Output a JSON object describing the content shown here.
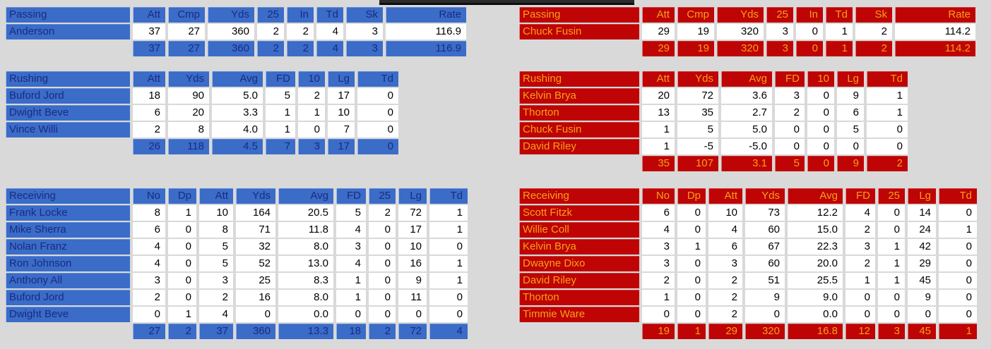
{
  "page": {
    "background": "#d9d9d9",
    "clipped_banner_color": "#2b2b2b"
  },
  "teams": [
    {
      "id": "team-left",
      "side": "left",
      "colors": {
        "cell": "#3a6cc8",
        "label_text": "#1a2b80",
        "value_text": "#000000",
        "value_bg": "#ffffff"
      },
      "sections": [
        {
          "key": "passing",
          "label": "Passing",
          "columns": [
            "Att",
            "Cmp",
            "Yds",
            "25",
            "In",
            "Td",
            "Sk",
            "Rate"
          ],
          "rows": [
            {
              "name": "Anderson",
              "values": [
                "37",
                "27",
                "360",
                "2",
                "2",
                "4",
                "3",
                "116.9"
              ]
            }
          ],
          "totals": [
            "37",
            "27",
            "360",
            "2",
            "2",
            "4",
            "3",
            "116.9"
          ]
        },
        {
          "key": "rushing",
          "label": "Rushing",
          "columns": [
            "Att",
            "Yds",
            "Avg",
            "FD",
            "10",
            "Lg",
            "Td"
          ],
          "rows": [
            {
              "name": "Buford Jord",
              "values": [
                "18",
                "90",
                "5.0",
                "5",
                "2",
                "17",
                "0"
              ]
            },
            {
              "name": "Dwight Beve",
              "values": [
                "6",
                "20",
                "3.3",
                "1",
                "1",
                "10",
                "0"
              ]
            },
            {
              "name": "Vince Willi",
              "values": [
                "2",
                "8",
                "4.0",
                "1",
                "0",
                "7",
                "0"
              ]
            }
          ],
          "totals": [
            "26",
            "118",
            "4.5",
            "7",
            "3",
            "17",
            "0"
          ]
        },
        {
          "key": "receiving",
          "label": "Receiving",
          "columns": [
            "No",
            "Dp",
            "Att",
            "Yds",
            "Avg",
            "FD",
            "25",
            "Lg",
            "Td"
          ],
          "rows": [
            {
              "name": "Frank Locke",
              "values": [
                "8",
                "1",
                "10",
                "164",
                "20.5",
                "5",
                "2",
                "72",
                "1"
              ]
            },
            {
              "name": "Mike Sherra",
              "values": [
                "6",
                "0",
                "8",
                "71",
                "11.8",
                "4",
                "0",
                "17",
                "1"
              ]
            },
            {
              "name": "Nolan Franz",
              "values": [
                "4",
                "0",
                "5",
                "32",
                "8.0",
                "3",
                "0",
                "10",
                "0"
              ]
            },
            {
              "name": "Ron Johnson",
              "values": [
                "4",
                "0",
                "5",
                "52",
                "13.0",
                "4",
                "0",
                "16",
                "1"
              ]
            },
            {
              "name": "Anthony All",
              "values": [
                "3",
                "0",
                "3",
                "25",
                "8.3",
                "1",
                "0",
                "9",
                "1"
              ]
            },
            {
              "name": "Buford Jord",
              "values": [
                "2",
                "0",
                "2",
                "16",
                "8.0",
                "1",
                "0",
                "11",
                "0"
              ]
            },
            {
              "name": "Dwight Beve",
              "values": [
                "0",
                "1",
                "4",
                "0",
                "0.0",
                "0",
                "0",
                "0",
                "0"
              ]
            }
          ],
          "totals": [
            "27",
            "2",
            "37",
            "360",
            "13.3",
            "18",
            "2",
            "72",
            "4"
          ]
        }
      ]
    },
    {
      "id": "team-right",
      "side": "right",
      "colors": {
        "cell": "#be0404",
        "label_text": "#f7a01c",
        "value_text": "#000000",
        "value_bg": "#ffffff"
      },
      "sections": [
        {
          "key": "passing",
          "label": "Passing",
          "columns": [
            "Att",
            "Cmp",
            "Yds",
            "25",
            "In",
            "Td",
            "Sk",
            "Rate"
          ],
          "rows": [
            {
              "name": "Chuck Fusin",
              "values": [
                "29",
                "19",
                "320",
                "3",
                "0",
                "1",
                "2",
                "114.2"
              ]
            }
          ],
          "totals": [
            "29",
            "19",
            "320",
            "3",
            "0",
            "1",
            "2",
            "114.2"
          ]
        },
        {
          "key": "rushing",
          "label": "Rushing",
          "columns": [
            "Att",
            "Yds",
            "Avg",
            "FD",
            "10",
            "Lg",
            "Td"
          ],
          "rows": [
            {
              "name": "Kelvin Brya",
              "values": [
                "20",
                "72",
                "3.6",
                "3",
                "0",
                "9",
                "1"
              ]
            },
            {
              "name": "Thorton",
              "values": [
                "13",
                "35",
                "2.7",
                "2",
                "0",
                "6",
                "1"
              ]
            },
            {
              "name": "Chuck Fusin",
              "values": [
                "1",
                "5",
                "5.0",
                "0",
                "0",
                "5",
                "0"
              ]
            },
            {
              "name": "David Riley",
              "values": [
                "1",
                "-5",
                "-5.0",
                "0",
                "0",
                "0",
                "0"
              ]
            }
          ],
          "totals": [
            "35",
            "107",
            "3.1",
            "5",
            "0",
            "9",
            "2"
          ]
        },
        {
          "key": "receiving",
          "label": "Receiving",
          "columns": [
            "No",
            "Dp",
            "Att",
            "Yds",
            "Avg",
            "FD",
            "25",
            "Lg",
            "Td"
          ],
          "rows": [
            {
              "name": "Scott Fitzk",
              "values": [
                "6",
                "0",
                "10",
                "73",
                "12.2",
                "4",
                "0",
                "14",
                "0"
              ]
            },
            {
              "name": "Willie Coll",
              "values": [
                "4",
                "0",
                "4",
                "60",
                "15.0",
                "2",
                "0",
                "24",
                "1"
              ]
            },
            {
              "name": "Kelvin Brya",
              "values": [
                "3",
                "1",
                "6",
                "67",
                "22.3",
                "3",
                "1",
                "42",
                "0"
              ]
            },
            {
              "name": "Dwayne Dixo",
              "values": [
                "3",
                "0",
                "3",
                "60",
                "20.0",
                "2",
                "1",
                "29",
                "0"
              ]
            },
            {
              "name": "David Riley",
              "values": [
                "2",
                "0",
                "2",
                "51",
                "25.5",
                "1",
                "1",
                "45",
                "0"
              ]
            },
            {
              "name": "Thorton",
              "values": [
                "1",
                "0",
                "2",
                "9",
                "9.0",
                "0",
                "0",
                "9",
                "0"
              ]
            },
            {
              "name": "Timmie Ware",
              "values": [
                "0",
                "0",
                "2",
                "0",
                "0.0",
                "0",
                "0",
                "0",
                "0"
              ]
            }
          ],
          "totals": [
            "19",
            "1",
            "29",
            "320",
            "16.8",
            "12",
            "3",
            "45",
            "1"
          ]
        }
      ]
    }
  ]
}
